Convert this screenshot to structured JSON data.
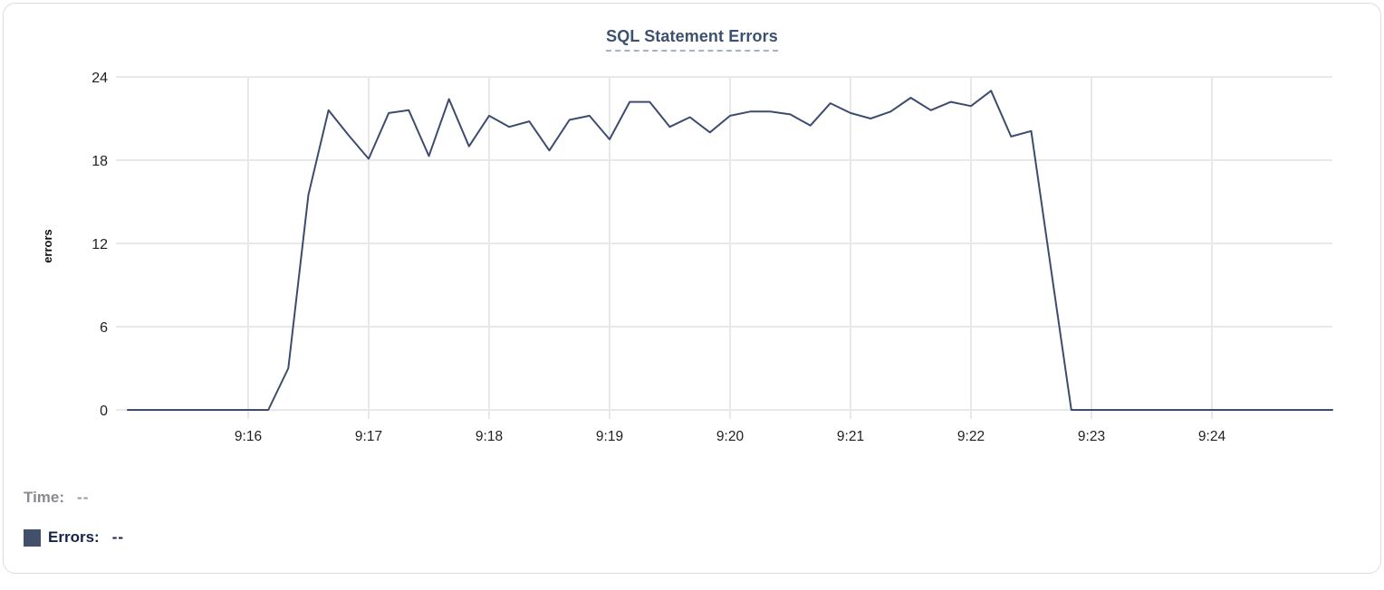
{
  "chart": {
    "title": "SQL Statement Errors",
    "y_axis_label": "errors",
    "y_ticks": [
      0,
      6,
      12,
      18,
      24
    ],
    "x_ticks": [
      "9:16",
      "9:17",
      "9:18",
      "9:19",
      "9:20",
      "9:21",
      "9:22",
      "9:23",
      "9:24"
    ]
  },
  "chart_data": {
    "type": "line",
    "title": "SQL Statement Errors",
    "xlabel": "",
    "ylabel": "errors",
    "ylim": [
      0,
      24
    ],
    "x_range": [
      "9:15:00",
      "9:25:00"
    ],
    "interval_seconds": 10,
    "grid": true,
    "legend_position": "bottom-left",
    "x_tick_labels": [
      "9:16",
      "9:17",
      "9:18",
      "9:19",
      "9:20",
      "9:21",
      "9:22",
      "9:23",
      "9:24"
    ],
    "series": [
      {
        "name": "Errors",
        "color": "#3d4c6e",
        "times": [
          "9:15:00",
          "9:15:10",
          "9:15:20",
          "9:15:30",
          "9:15:40",
          "9:15:50",
          "9:16:00",
          "9:16:10",
          "9:16:20",
          "9:16:30",
          "9:16:40",
          "9:16:50",
          "9:17:00",
          "9:17:10",
          "9:17:20",
          "9:17:30",
          "9:17:40",
          "9:17:50",
          "9:18:00",
          "9:18:10",
          "9:18:20",
          "9:18:30",
          "9:18:40",
          "9:18:50",
          "9:19:00",
          "9:19:10",
          "9:19:20",
          "9:19:30",
          "9:19:40",
          "9:19:50",
          "9:20:00",
          "9:20:10",
          "9:20:20",
          "9:20:30",
          "9:20:40",
          "9:20:50",
          "9:21:00",
          "9:21:10",
          "9:21:20",
          "9:21:30",
          "9:21:40",
          "9:21:50",
          "9:22:00",
          "9:22:10",
          "9:22:20",
          "9:22:30",
          "9:22:40",
          "9:22:50",
          "9:23:00",
          "9:23:10",
          "9:23:20",
          "9:23:30",
          "9:23:40",
          "9:23:50",
          "9:24:00",
          "9:24:10",
          "9:24:20",
          "9:24:30",
          "9:24:40",
          "9:24:50",
          "9:25:00"
        ],
        "values": [
          0,
          0,
          0,
          0,
          0,
          0,
          0,
          0,
          3,
          15.5,
          21.6,
          19.8,
          18.1,
          21.4,
          21.6,
          18.3,
          22.4,
          19,
          21.2,
          20.4,
          20.8,
          18.7,
          20.9,
          21.2,
          19.5,
          22.2,
          22.2,
          20.4,
          21.1,
          20,
          21.2,
          21.5,
          21.5,
          21.3,
          20.5,
          22.1,
          21.4,
          21,
          21.5,
          22.5,
          21.6,
          22.2,
          21.9,
          23,
          19.7,
          20.1,
          10,
          0,
          0,
          0,
          0,
          0,
          0,
          0,
          0,
          0,
          0,
          0,
          0,
          0,
          0
        ]
      }
    ]
  },
  "legend": {
    "time_label": "Time:",
    "time_value": "--",
    "errors_label": "Errors:",
    "errors_value": "--"
  },
  "colors": {
    "line": "#3d4c6e",
    "swatch": "#42506c",
    "title": "#3c5070",
    "title_underline": "#a6b1c6",
    "grid": "#e8e8ea",
    "tick_text": "#1f1f1f"
  }
}
